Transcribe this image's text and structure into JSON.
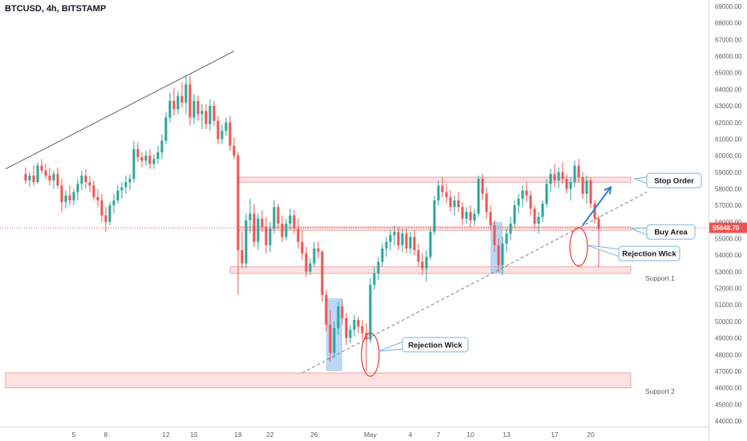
{
  "header": {
    "title": "BTCUSD, 4h, BITSTAMP"
  },
  "colors": {
    "up": "#26a69a",
    "down": "#ef5350",
    "up_alt": "#1e40af",
    "zone_fill": "#fde2e2",
    "zone_stroke": "#f3a4a4",
    "blue_zone": "#9cc8f2",
    "arrow": "#2a86c9",
    "price_tag": "#ef5350"
  },
  "chart_data": {
    "type": "candlestick",
    "title": "BTCUSD, 4h, BITSTAMP",
    "ylim": [
      43800,
      69600
    ],
    "xlim": [
      -5,
      152
    ],
    "y_ticks": [
      {
        "v": 44000,
        "label": "44000.00"
      },
      {
        "v": 45000,
        "label": "45000.00"
      },
      {
        "v": 46000,
        "label": "46000.00"
      },
      {
        "v": 47000,
        "label": "47000.00"
      },
      {
        "v": 48000,
        "label": "48000.00"
      },
      {
        "v": 49000,
        "label": "49000.00"
      },
      {
        "v": 50000,
        "label": "50000.00"
      },
      {
        "v": 51000,
        "label": "51000.00"
      },
      {
        "v": 52000,
        "label": "52000.00"
      },
      {
        "v": 53000,
        "label": "53000.00"
      },
      {
        "v": 54000,
        "label": "54000.00"
      },
      {
        "v": 55000,
        "label": "55000.00"
      },
      {
        "v": 56000,
        "label": "56000.00"
      },
      {
        "v": 57000,
        "label": "57000.00"
      },
      {
        "v": 58000,
        "label": "58000.00"
      },
      {
        "v": 59000,
        "label": "59000.00"
      },
      {
        "v": 60000,
        "label": "60000.00"
      },
      {
        "v": 61000,
        "label": "61000.00"
      },
      {
        "v": 62000,
        "label": "62000.00"
      },
      {
        "v": 63000,
        "label": "63000.00"
      },
      {
        "v": 64000,
        "label": "64000.00"
      },
      {
        "v": 65000,
        "label": "65000.00"
      },
      {
        "v": 66000,
        "label": "66000.00"
      },
      {
        "v": 67000,
        "label": "67000.00"
      },
      {
        "v": 68000,
        "label": "68000.00"
      },
      {
        "v": 69000,
        "label": "69000.00"
      }
    ],
    "x_ticks": [
      {
        "i": 12,
        "label": "5"
      },
      {
        "i": 20,
        "label": "8"
      },
      {
        "i": 35,
        "label": "12"
      },
      {
        "i": 42,
        "label": "15"
      },
      {
        "i": 53,
        "label": "19"
      },
      {
        "i": 61,
        "label": "22"
      },
      {
        "i": 72,
        "label": "26"
      },
      {
        "i": 86,
        "label": "May"
      },
      {
        "i": 96,
        "label": "4"
      },
      {
        "i": 103,
        "label": "7"
      },
      {
        "i": 111,
        "label": "10"
      },
      {
        "i": 120,
        "label": "13"
      },
      {
        "i": 132,
        "label": "17"
      },
      {
        "i": 141,
        "label": "20"
      }
    ],
    "last_price": {
      "value": 55648.7,
      "label": "55648.70"
    },
    "candles": [
      {
        "o": 58900,
        "h": 59300,
        "l": 58300,
        "c": 58500
      },
      {
        "o": 58500,
        "h": 59000,
        "l": 58100,
        "c": 58800
      },
      {
        "o": 58800,
        "h": 59400,
        "l": 58200,
        "c": 58400
      },
      {
        "o": 58400,
        "h": 59600,
        "l": 58300,
        "c": 59400
      },
      {
        "o": 59400,
        "h": 59800,
        "l": 58900,
        "c": 59100
      },
      {
        "o": 59100,
        "h": 59500,
        "l": 58600,
        "c": 58800
      },
      {
        "o": 58800,
        "h": 59300,
        "l": 58200,
        "c": 58500
      },
      {
        "o": 58500,
        "h": 59100,
        "l": 58000,
        "c": 58900
      },
      {
        "o": 58900,
        "h": 59300,
        "l": 58000,
        "c": 58200
      },
      {
        "o": 58200,
        "h": 58600,
        "l": 56600,
        "c": 57200
      },
      {
        "o": 57200,
        "h": 57900,
        "l": 56800,
        "c": 57600
      },
      {
        "o": 57600,
        "h": 58200,
        "l": 57000,
        "c": 57300
      },
      {
        "o": 57300,
        "h": 58000,
        "l": 57000,
        "c": 57800
      },
      {
        "o": 57800,
        "h": 58600,
        "l": 57300,
        "c": 58300
      },
      {
        "o": 58300,
        "h": 59100,
        "l": 57900,
        "c": 58800
      },
      {
        "o": 58800,
        "h": 59200,
        "l": 58000,
        "c": 58400
      },
      {
        "o": 58400,
        "h": 58800,
        "l": 57800,
        "c": 58200
      },
      {
        "o": 58200,
        "h": 58500,
        "l": 57300,
        "c": 57500
      },
      {
        "o": 57500,
        "h": 58000,
        "l": 56900,
        "c": 57300
      },
      {
        "o": 57300,
        "h": 57700,
        "l": 56000,
        "c": 56400
      },
      {
        "o": 56400,
        "h": 56900,
        "l": 55400,
        "c": 56000
      },
      {
        "o": 56000,
        "h": 57200,
        "l": 55800,
        "c": 57000
      },
      {
        "o": 57000,
        "h": 57700,
        "l": 56500,
        "c": 57300
      },
      {
        "o": 57300,
        "h": 58200,
        "l": 57100,
        "c": 57900
      },
      {
        "o": 57900,
        "h": 58400,
        "l": 57400,
        "c": 58100
      },
      {
        "o": 58100,
        "h": 58800,
        "l": 57700,
        "c": 58400
      },
      {
        "o": 58400,
        "h": 58900,
        "l": 57900,
        "c": 58600
      },
      {
        "o": 58600,
        "h": 60900,
        "l": 58400,
        "c": 60400
      },
      {
        "o": 60400,
        "h": 60800,
        "l": 59600,
        "c": 59900
      },
      {
        "o": 59900,
        "h": 60200,
        "l": 59300,
        "c": 59700
      },
      {
        "o": 59700,
        "h": 60300,
        "l": 59400,
        "c": 60000
      },
      {
        "o": 60000,
        "h": 60400,
        "l": 59200,
        "c": 59500
      },
      {
        "o": 59500,
        "h": 60100,
        "l": 59200,
        "c": 59800
      },
      {
        "o": 59800,
        "h": 60600,
        "l": 59500,
        "c": 60200
      },
      {
        "o": 60200,
        "h": 61300,
        "l": 59800,
        "c": 60900
      },
      {
        "o": 60900,
        "h": 62600,
        "l": 60700,
        "c": 62300
      },
      {
        "o": 62300,
        "h": 63800,
        "l": 62000,
        "c": 63300
      },
      {
        "o": 63300,
        "h": 64100,
        "l": 62400,
        "c": 62800
      },
      {
        "o": 62800,
        "h": 63900,
        "l": 62500,
        "c": 63600
      },
      {
        "o": 63600,
        "h": 64400,
        "l": 62900,
        "c": 63200
      },
      {
        "o": 63200,
        "h": 64900,
        "l": 62500,
        "c": 64300
      },
      {
        "o": 64300,
        "h": 64800,
        "l": 61800,
        "c": 62300
      },
      {
        "o": 62300,
        "h": 63700,
        "l": 61900,
        "c": 63300
      },
      {
        "o": 63300,
        "h": 63600,
        "l": 62100,
        "c": 62500
      },
      {
        "o": 62500,
        "h": 63100,
        "l": 61600,
        "c": 62700
      },
      {
        "o": 62700,
        "h": 63100,
        "l": 61600,
        "c": 61900
      },
      {
        "o": 61900,
        "h": 63400,
        "l": 61500,
        "c": 63000
      },
      {
        "o": 63000,
        "h": 63300,
        "l": 61800,
        "c": 62100
      },
      {
        "o": 62100,
        "h": 62400,
        "l": 60700,
        "c": 61000
      },
      {
        "o": 61000,
        "h": 61900,
        "l": 60700,
        "c": 61500
      },
      {
        "o": 61500,
        "h": 62300,
        "l": 61200,
        "c": 62000
      },
      {
        "o": 62000,
        "h": 62400,
        "l": 60300,
        "c": 60600
      },
      {
        "o": 60600,
        "h": 61100,
        "l": 59800,
        "c": 60000
      },
      {
        "o": 60000,
        "h": 60200,
        "l": 51600,
        "c": 54300
      },
      {
        "o": 54300,
        "h": 55400,
        "l": 53200,
        "c": 53500
      },
      {
        "o": 53500,
        "h": 56500,
        "l": 53200,
        "c": 56100
      },
      {
        "o": 56100,
        "h": 57400,
        "l": 55300,
        "c": 56500
      },
      {
        "o": 56500,
        "h": 57100,
        "l": 54500,
        "c": 54800
      },
      {
        "o": 54800,
        "h": 56500,
        "l": 54300,
        "c": 56200
      },
      {
        "o": 56200,
        "h": 56700,
        "l": 55400,
        "c": 55700
      },
      {
        "o": 55700,
        "h": 56300,
        "l": 54100,
        "c": 54600
      },
      {
        "o": 54600,
        "h": 56000,
        "l": 54200,
        "c": 55600
      },
      {
        "o": 55600,
        "h": 57300,
        "l": 55300,
        "c": 56900
      },
      {
        "o": 56900,
        "h": 57100,
        "l": 55600,
        "c": 55900
      },
      {
        "o": 55900,
        "h": 56400,
        "l": 54800,
        "c": 55100
      },
      {
        "o": 55100,
        "h": 56200,
        "l": 54900,
        "c": 55900
      },
      {
        "o": 55900,
        "h": 56800,
        "l": 55500,
        "c": 56400
      },
      {
        "o": 56400,
        "h": 56700,
        "l": 55300,
        "c": 55600
      },
      {
        "o": 55600,
        "h": 56200,
        "l": 54400,
        "c": 54800
      },
      {
        "o": 54800,
        "h": 55500,
        "l": 53700,
        "c": 54100
      },
      {
        "o": 54100,
        "h": 54500,
        "l": 52700,
        "c": 53000
      },
      {
        "o": 53000,
        "h": 53800,
        "l": 52800,
        "c": 53500
      },
      {
        "o": 53500,
        "h": 54800,
        "l": 53300,
        "c": 54400
      },
      {
        "o": 54400,
        "h": 54800,
        "l": 53800,
        "c": 54200
      },
      {
        "o": 54200,
        "h": 54300,
        "l": 51200,
        "c": 51600
      },
      {
        "o": 51600,
        "h": 51900,
        "l": 49400,
        "c": 49800
      },
      {
        "o": 49800,
        "h": 50700,
        "l": 47600,
        "c": 48100
      },
      {
        "o": 48100,
        "h": 50000,
        "l": 47800,
        "c": 49600
      },
      {
        "o": 49600,
        "h": 51200,
        "l": 49200,
        "c": 50900
      },
      {
        "o": 50900,
        "h": 51300,
        "l": 49800,
        "c": 50200
      },
      {
        "o": 50200,
        "h": 50500,
        "l": 48600,
        "c": 49000
      },
      {
        "o": 49000,
        "h": 49800,
        "l": 48700,
        "c": 49500
      },
      {
        "o": 49500,
        "h": 50400,
        "l": 49100,
        "c": 50100
      },
      {
        "o": 50100,
        "h": 50300,
        "l": 49300,
        "c": 49700
      },
      {
        "o": 49700,
        "h": 50100,
        "l": 48900,
        "c": 49300
      },
      {
        "o": 49300,
        "h": 49900,
        "l": 47000,
        "c": 48900
      },
      {
        "o": 48900,
        "h": 52600,
        "l": 48700,
        "c": 52200
      },
      {
        "o": 52200,
        "h": 53300,
        "l": 51900,
        "c": 52900
      },
      {
        "o": 52900,
        "h": 53900,
        "l": 52500,
        "c": 53600
      },
      {
        "o": 53600,
        "h": 54700,
        "l": 53300,
        "c": 54400
      },
      {
        "o": 54400,
        "h": 55100,
        "l": 53900,
        "c": 54800
      },
      {
        "o": 54800,
        "h": 55500,
        "l": 54300,
        "c": 55200
      },
      {
        "o": 55200,
        "h": 55800,
        "l": 54600,
        "c": 55400
      },
      {
        "o": 55400,
        "h": 55700,
        "l": 54300,
        "c": 54600
      },
      {
        "o": 54600,
        "h": 55600,
        "l": 54200,
        "c": 55300
      },
      {
        "o": 55300,
        "h": 55600,
        "l": 54100,
        "c": 54400
      },
      {
        "o": 54400,
        "h": 55400,
        "l": 54100,
        "c": 55100
      },
      {
        "o": 55100,
        "h": 55500,
        "l": 54000,
        "c": 54300
      },
      {
        "o": 54300,
        "h": 54700,
        "l": 53300,
        "c": 53600
      },
      {
        "o": 53600,
        "h": 54100,
        "l": 52800,
        "c": 53200
      },
      {
        "o": 53200,
        "h": 54300,
        "l": 52400,
        "c": 53900
      },
      {
        "o": 53900,
        "h": 55700,
        "l": 53700,
        "c": 55400
      },
      {
        "o": 55400,
        "h": 57600,
        "l": 55200,
        "c": 57300
      },
      {
        "o": 57300,
        "h": 58500,
        "l": 57000,
        "c": 58200
      },
      {
        "o": 58200,
        "h": 58700,
        "l": 57500,
        "c": 57800
      },
      {
        "o": 57800,
        "h": 58300,
        "l": 57100,
        "c": 57500
      },
      {
        "o": 57500,
        "h": 57900,
        "l": 56600,
        "c": 56900
      },
      {
        "o": 56900,
        "h": 57600,
        "l": 56400,
        "c": 57300
      },
      {
        "o": 57300,
        "h": 57800,
        "l": 56600,
        "c": 56900
      },
      {
        "o": 56900,
        "h": 57200,
        "l": 55800,
        "c": 56200
      },
      {
        "o": 56200,
        "h": 56900,
        "l": 55900,
        "c": 56600
      },
      {
        "o": 56600,
        "h": 57000,
        "l": 55700,
        "c": 56100
      },
      {
        "o": 56100,
        "h": 56800,
        "l": 55800,
        "c": 56500
      },
      {
        "o": 56500,
        "h": 58800,
        "l": 56300,
        "c": 58600
      },
      {
        "o": 58600,
        "h": 58900,
        "l": 57300,
        "c": 57700
      },
      {
        "o": 57700,
        "h": 58100,
        "l": 56200,
        "c": 56600
      },
      {
        "o": 56600,
        "h": 57000,
        "l": 55500,
        "c": 55800
      },
      {
        "o": 55800,
        "h": 56100,
        "l": 54200,
        "c": 54600
      },
      {
        "o": 54600,
        "h": 55000,
        "l": 53000,
        "c": 53400
      },
      {
        "o": 53400,
        "h": 55100,
        "l": 52800,
        "c": 54700
      },
      {
        "o": 54700,
        "h": 55600,
        "l": 54200,
        "c": 55300
      },
      {
        "o": 55300,
        "h": 56300,
        "l": 54900,
        "c": 55900
      },
      {
        "o": 55900,
        "h": 57300,
        "l": 55700,
        "c": 57000
      },
      {
        "o": 57000,
        "h": 57700,
        "l": 56500,
        "c": 57400
      },
      {
        "o": 57400,
        "h": 58200,
        "l": 56900,
        "c": 57900
      },
      {
        "o": 57900,
        "h": 58400,
        "l": 57200,
        "c": 57600
      },
      {
        "o": 57600,
        "h": 57900,
        "l": 56400,
        "c": 56800
      },
      {
        "o": 56800,
        "h": 57000,
        "l": 55600,
        "c": 55900
      },
      {
        "o": 55900,
        "h": 56600,
        "l": 55300,
        "c": 56300
      },
      {
        "o": 56300,
        "h": 57300,
        "l": 56000,
        "c": 57100
      },
      {
        "o": 57100,
        "h": 58600,
        "l": 56900,
        "c": 58300
      },
      {
        "o": 58300,
        "h": 59200,
        "l": 57800,
        "c": 58900
      },
      {
        "o": 58900,
        "h": 59500,
        "l": 58100,
        "c": 58500
      },
      {
        "o": 58500,
        "h": 59300,
        "l": 58000,
        "c": 59000
      },
      {
        "o": 59000,
        "h": 59600,
        "l": 58300,
        "c": 58600
      },
      {
        "o": 58600,
        "h": 58900,
        "l": 57700,
        "c": 58000
      },
      {
        "o": 58000,
        "h": 58700,
        "l": 57300,
        "c": 58400
      },
      {
        "o": 58400,
        "h": 59700,
        "l": 58100,
        "c": 59400
      },
      {
        "o": 59400,
        "h": 59800,
        "l": 58400,
        "c": 58700
      },
      {
        "o": 58700,
        "h": 59000,
        "l": 57400,
        "c": 57700
      },
      {
        "o": 57700,
        "h": 58800,
        "l": 57100,
        "c": 58500
      },
      {
        "o": 58500,
        "h": 58700,
        "l": 56800,
        "c": 57100
      },
      {
        "o": 57100,
        "h": 57300,
        "l": 55900,
        "c": 56200
      },
      {
        "o": 56200,
        "h": 56400,
        "l": 53300,
        "c": 55600
      }
    ],
    "zones": [
      {
        "name": "stop-order-zone",
        "y1": 58400,
        "y2": 58700,
        "i1": 53,
        "i2": 151
      },
      {
        "name": "buy-area-zone",
        "y1": 55500,
        "y2": 55700,
        "i1": 53,
        "i2": 151
      },
      {
        "name": "support-1-zone",
        "y1": 52900,
        "y2": 53300,
        "i1": 51,
        "i2": 151
      },
      {
        "name": "support-2-zone",
        "y1": 46000,
        "y2": 46900,
        "i1": -5,
        "i2": 151
      }
    ],
    "blue_zones": [
      {
        "i1": 75,
        "i2": 79,
        "y1": 47000,
        "y2": 51400
      },
      {
        "i1": 116,
        "i2": 119,
        "y1": 52900,
        "y2": 56000
      }
    ],
    "trendlines": [
      {
        "name": "upper-trendline",
        "i1": -5,
        "y1": 59200,
        "i2": 52,
        "y2": 66300,
        "dashed": false
      },
      {
        "name": "rising-support-trendline",
        "i1": 69,
        "y1": 46900,
        "i2": 155,
        "y2": 57800,
        "dashed": true
      }
    ],
    "ellipses": [
      {
        "name": "rejection-wick-ellipse-1",
        "i": 86,
        "y": 48000,
        "rx_i": 2.2,
        "ry": 1300
      },
      {
        "name": "rejection-wick-ellipse-2",
        "i": 138,
        "y": 54500,
        "rx_i": 2.2,
        "ry": 1150
      }
    ],
    "arrow": {
      "i1": 139,
      "y1": 55800,
      "i2": 146,
      "y2": 58100
    },
    "callouts": [
      {
        "name": "stop-order-callout",
        "text": "Stop Order",
        "i": 155,
        "y": 58500,
        "w": 68,
        "ptr_i": 152,
        "ptr_y": 58600
      },
      {
        "name": "buy-area-callout",
        "text": "Buy Area",
        "i": 155,
        "y": 55400,
        "w": 60,
        "ptr_i": 151,
        "ptr_y": 55600
      },
      {
        "name": "rejection-wick-callout-1",
        "text": "Rejection Wick",
        "i": 148,
        "y": 54100,
        "w": 76,
        "ptr_i": 140,
        "ptr_y": 54600
      },
      {
        "name": "rejection-wick-callout-2",
        "text": "Rejection Wick",
        "i": 94,
        "y": 48600,
        "w": 82,
        "ptr_i": 88,
        "ptr_y": 48200
      }
    ],
    "labels": [
      {
        "name": "support-1-label",
        "text": "Support 1",
        "i": 165,
        "y": 52600
      },
      {
        "name": "support-2-label",
        "text": "Support 2",
        "i": 165,
        "y": 45800
      }
    ]
  }
}
